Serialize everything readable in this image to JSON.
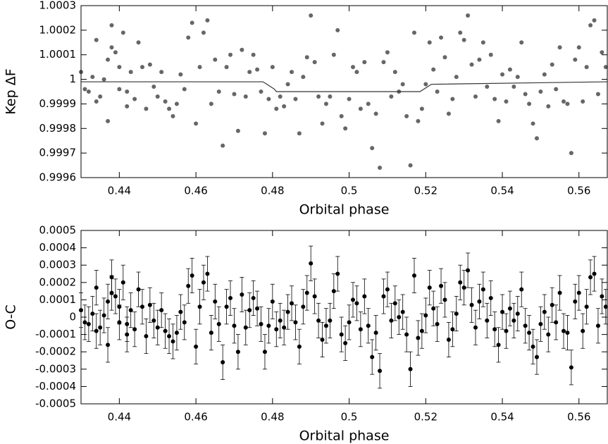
{
  "chart_data": [
    {
      "type": "scatter",
      "ylabel": "Kep ΔF",
      "xlabel": "Orbital phase",
      "xlim": [
        0.43,
        0.5674
      ],
      "ylim": [
        0.9996,
        1.0003
      ],
      "xticks": [
        0.44,
        0.46,
        0.48,
        0.5,
        0.52,
        0.54,
        0.56
      ],
      "yticks": [
        0.9996,
        0.9997,
        0.9998,
        0.9999,
        1,
        1.0001,
        1.0002,
        1.0003
      ],
      "series": [
        {
          "color": "#666666",
          "style": "points",
          "x": [
            0.43,
            0.431,
            0.432,
            0.433,
            0.434,
            0.434,
            0.435,
            0.436,
            0.437,
            0.437,
            0.438,
            0.438,
            0.439,
            0.44,
            0.44,
            0.441,
            0.442,
            0.442,
            0.443,
            0.444,
            0.445,
            0.446,
            0.447,
            0.448,
            0.449,
            0.45,
            0.451,
            0.452,
            0.453,
            0.454,
            0.455,
            0.456,
            0.457,
            0.458,
            0.459,
            0.46,
            0.461,
            0.462,
            0.463,
            0.464,
            0.465,
            0.466,
            0.467,
            0.468,
            0.469,
            0.47,
            0.471,
            0.472,
            0.473,
            0.474,
            0.475,
            0.476,
            0.477,
            0.478,
            0.479,
            0.48,
            0.481,
            0.482,
            0.483,
            0.484,
            0.485,
            0.486,
            0.487,
            0.488,
            0.489,
            0.49,
            0.491,
            0.492,
            0.493,
            0.494,
            0.495,
            0.496,
            0.497,
            0.498,
            0.499,
            0.5,
            0.501,
            0.502,
            0.503,
            0.504,
            0.505,
            0.506,
            0.507,
            0.508,
            0.509,
            0.51,
            0.511,
            0.512,
            0.513,
            0.514,
            0.515,
            0.516,
            0.517,
            0.518,
            0.519,
            0.52,
            0.521,
            0.522,
            0.523,
            0.524,
            0.525,
            0.526,
            0.527,
            0.528,
            0.529,
            0.53,
            0.531,
            0.532,
            0.533,
            0.534,
            0.535,
            0.536,
            0.537,
            0.538,
            0.539,
            0.54,
            0.541,
            0.542,
            0.543,
            0.544,
            0.545,
            0.546,
            0.547,
            0.548,
            0.549,
            0.55,
            0.551,
            0.552,
            0.553,
            0.554,
            0.555,
            0.556,
            0.557,
            0.558,
            0.559,
            0.56,
            0.561,
            0.562,
            0.563,
            0.564,
            0.565,
            0.566,
            0.567
          ],
          "values": [
            1.00003,
            0.99996,
            0.99995,
            1.00001,
            1.00016,
            0.99991,
            0.99993,
            1.0,
            0.99983,
            1.00008,
            1.00022,
            1.00013,
            1.00011,
            1.00005,
            0.99996,
            1.00019,
            0.99989,
            0.99995,
            1.00003,
            0.99992,
            1.00015,
            1.00005,
            0.99988,
            1.00006,
            0.99997,
            0.99993,
            1.00003,
            0.99991,
            0.99988,
            0.99985,
            0.9999,
            1.00002,
            0.99996,
            1.00017,
            1.00023,
            0.99982,
            1.00005,
            1.00019,
            1.00024,
            0.9999,
            1.00008,
            0.99995,
            0.99973,
            1.00005,
            1.0001,
            0.99994,
            0.99979,
            1.00012,
            0.99993,
            1.00003,
            1.0001,
            1.00004,
            0.99995,
            0.99978,
            0.99992,
            1.00005,
            0.99988,
            0.99993,
            0.99989,
            0.99998,
            1.00003,
            0.99992,
            0.99978,
            1.00001,
            1.00009,
            1.00026,
            1.00007,
            0.99993,
            0.99982,
            0.9999,
            0.99993,
            1.0001,
            1.0002,
            0.99985,
            0.9998,
            0.99992,
            1.00005,
            1.00003,
            0.99988,
            1.00007,
            0.9999,
            0.99972,
            0.99986,
            0.99964,
            1.00007,
            1.00011,
            0.99993,
            1.00003,
            0.99995,
            0.99998,
            0.99985,
            0.99965,
            1.00019,
            0.99983,
            0.99988,
            0.99998,
            1.00015,
            1.00004,
            0.99995,
            1.00017,
            1.00009,
            0.99986,
            0.99992,
            1.00001,
            1.00019,
            1.00016,
            1.00026,
            1.00006,
            0.99993,
            1.00008,
            1.00015,
            0.99997,
            1.0001,
            0.99992,
            0.99983,
            1.00002,
            0.99991,
            1.00004,
            0.99997,
            1.00001,
            1.00015,
            0.99994,
            0.9999,
            0.99982,
            0.99976,
            0.99995,
            1.00002,
            0.99989,
            1.00006,
            0.99996,
            1.00013,
            0.99991,
            0.9999,
            0.9997,
            1.00008,
            1.00013,
            0.99991,
            1.00005,
            1.00022,
            1.00024,
            0.99994,
            1.00011,
            1.00005
          ]
        },
        {
          "color": "#333333",
          "style": "line",
          "x": [
            0.43,
            0.4775,
            0.4785,
            0.4795,
            0.4805,
            0.481,
            0.5185,
            0.5195,
            0.5205,
            0.5215,
            0.5674
          ],
          "values": [
            0.99999,
            0.99999,
            0.99998,
            0.99997,
            0.99996,
            0.99995,
            0.99995,
            0.99996,
            0.99997,
            0.99998,
            0.99999
          ]
        }
      ]
    },
    {
      "type": "errorbar",
      "ylabel": "O-C",
      "xlabel": "Orbital phase",
      "xlim": [
        0.43,
        0.5674
      ],
      "ylim": [
        -0.0005,
        0.0005
      ],
      "xticks": [
        0.44,
        0.46,
        0.48,
        0.5,
        0.52,
        0.54,
        0.56
      ],
      "yticks": [
        -0.0005,
        -0.0004,
        -0.0003,
        -0.0002,
        -0.0001,
        0,
        0.0001,
        0.0002,
        0.0003,
        0.0004,
        0.0005
      ],
      "series": [
        {
          "color": "#000000",
          "yerr": 0.0001,
          "x": [
            0.43,
            0.431,
            0.432,
            0.433,
            0.434,
            0.434,
            0.435,
            0.436,
            0.437,
            0.437,
            0.438,
            0.438,
            0.439,
            0.44,
            0.44,
            0.441,
            0.442,
            0.442,
            0.443,
            0.444,
            0.445,
            0.446,
            0.447,
            0.448,
            0.449,
            0.45,
            0.451,
            0.452,
            0.453,
            0.454,
            0.455,
            0.456,
            0.457,
            0.458,
            0.459,
            0.46,
            0.461,
            0.462,
            0.463,
            0.464,
            0.465,
            0.466,
            0.467,
            0.468,
            0.469,
            0.47,
            0.471,
            0.472,
            0.473,
            0.474,
            0.475,
            0.476,
            0.477,
            0.478,
            0.479,
            0.48,
            0.481,
            0.482,
            0.483,
            0.484,
            0.485,
            0.486,
            0.487,
            0.488,
            0.489,
            0.49,
            0.491,
            0.492,
            0.493,
            0.494,
            0.495,
            0.496,
            0.497,
            0.498,
            0.499,
            0.5,
            0.501,
            0.502,
            0.503,
            0.504,
            0.505,
            0.506,
            0.507,
            0.508,
            0.509,
            0.51,
            0.511,
            0.512,
            0.513,
            0.514,
            0.515,
            0.516,
            0.517,
            0.518,
            0.519,
            0.52,
            0.521,
            0.522,
            0.523,
            0.524,
            0.525,
            0.526,
            0.527,
            0.528,
            0.529,
            0.53,
            0.531,
            0.532,
            0.533,
            0.534,
            0.535,
            0.536,
            0.537,
            0.538,
            0.539,
            0.54,
            0.541,
            0.542,
            0.543,
            0.544,
            0.545,
            0.546,
            0.547,
            0.548,
            0.549,
            0.55,
            0.551,
            0.552,
            0.553,
            0.554,
            0.555,
            0.556,
            0.557,
            0.558,
            0.559,
            0.56,
            0.561,
            0.562,
            0.563,
            0.564,
            0.565,
            0.566,
            0.567
          ],
          "values": [
            4e-05,
            -3e-05,
            -4e-05,
            2e-05,
            0.00017,
            -8e-05,
            -6e-05,
            1e-05,
            -0.00016,
            9e-05,
            0.00023,
            0.00014,
            0.00012,
            6e-05,
            -3e-05,
            0.0002,
            -0.0001,
            -4e-05,
            4e-05,
            -7e-05,
            0.00016,
            6e-05,
            -0.00011,
            7e-05,
            -2e-05,
            -6e-05,
            4e-05,
            -8e-05,
            -0.00011,
            -0.00014,
            -9e-05,
            3e-05,
            -3e-05,
            0.00018,
            0.00024,
            -0.00017,
            6e-05,
            0.0002,
            0.00025,
            -9e-05,
            9e-05,
            -4e-05,
            -0.00026,
            6e-05,
            0.00011,
            -5e-05,
            -0.0002,
            0.00013,
            -6e-05,
            4e-05,
            0.00011,
            5e-05,
            -4e-05,
            -0.0002,
            -5e-05,
            9e-05,
            -7e-05,
            -2e-05,
            -6e-05,
            3e-05,
            8e-05,
            -3e-05,
            -0.00017,
            6e-05,
            0.00014,
            0.00031,
            0.00012,
            -2e-05,
            -0.00013,
            -5e-05,
            -2e-05,
            0.00015,
            0.00025,
            -0.0001,
            -0.00015,
            -3e-05,
            0.0001,
            8e-05,
            -7e-05,
            0.00012,
            -5e-05,
            -0.00023,
            -9e-05,
            -0.00031,
            0.00012,
            0.00016,
            -2e-05,
            8e-05,
            0,
            3e-05,
            -0.0001,
            -0.0003,
            0.00024,
            -0.00012,
            -8e-05,
            1e-05,
            0.00017,
            5e-05,
            -4e-05,
            0.00018,
            0.0001,
            -0.00013,
            -7e-05,
            2e-05,
            0.0002,
            0.00017,
            0.00027,
            7e-05,
            -6e-05,
            9e-05,
            0.00016,
            -2e-05,
            0.00011,
            -7e-05,
            -0.00016,
            3e-05,
            -8e-05,
            5e-05,
            -2e-05,
            2e-05,
            0.00016,
            -5e-05,
            -9e-05,
            -0.00017,
            -0.00023,
            -4e-05,
            3e-05,
            -0.0001,
            7e-05,
            -3e-05,
            0.00014,
            -8e-05,
            -9e-05,
            -0.00029,
            9e-05,
            0.00014,
            -8e-05,
            6e-05,
            0.00023,
            0.00025,
            -5e-05,
            0.00012,
            6e-05
          ]
        }
      ]
    }
  ]
}
